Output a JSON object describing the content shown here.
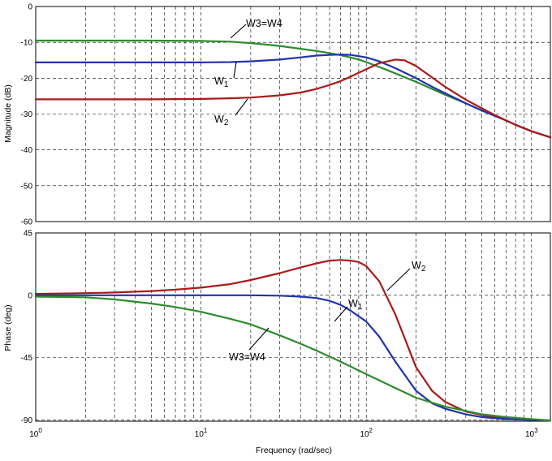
{
  "chart_data": [
    {
      "type": "line",
      "name": "magnitude",
      "xscale": "log",
      "xlim": [
        1,
        1300
      ],
      "ylim": [
        -60,
        0
      ],
      "yticks": [
        -60,
        -50,
        -40,
        -30,
        -20,
        -10,
        0
      ],
      "ytick_labels": [
        "-60",
        "-50",
        "-40",
        "-30",
        "-20",
        "-10",
        "0"
      ],
      "ylabel": "Magnitude (dB)",
      "grid": true,
      "series": [
        {
          "name": "W3=W4",
          "color": "#2e8b2e",
          "x": [
            1,
            5,
            10,
            15,
            20,
            30,
            40,
            50,
            60,
            70,
            80,
            90,
            100,
            130,
            160,
            200,
            250,
            300,
            400,
            500,
            600,
            700,
            800,
            1000,
            1300
          ],
          "y": [
            -9.5,
            -9.5,
            -9.6,
            -9.8,
            -10.2,
            -11.0,
            -11.8,
            -12.4,
            -13.0,
            -13.6,
            -14.2,
            -14.8,
            -15.5,
            -17.5,
            -19.2,
            -21.0,
            -23.0,
            -24.6,
            -27.0,
            -29.0,
            -30.5,
            -31.8,
            -33.0,
            -34.8,
            -36.5
          ]
        },
        {
          "name": "W1",
          "color": "#2233aa",
          "x": [
            1,
            5,
            10,
            15,
            20,
            30,
            40,
            50,
            60,
            70,
            80,
            100,
            120,
            150,
            200,
            250,
            300,
            400,
            500,
            600,
            700,
            800,
            1000,
            1300
          ],
          "y": [
            -15.6,
            -15.6,
            -15.6,
            -15.5,
            -15.3,
            -14.8,
            -14.2,
            -13.7,
            -13.5,
            -13.4,
            -13.5,
            -14.2,
            -15.3,
            -17.2,
            -20.0,
            -22.4,
            -24.2,
            -27.0,
            -29.0,
            -30.5,
            -31.8,
            -33.0,
            -34.8,
            -36.5
          ]
        },
        {
          "name": "W2",
          "color": "#aa1a1a",
          "x": [
            1,
            5,
            10,
            15,
            20,
            30,
            40,
            50,
            60,
            70,
            80,
            100,
            120,
            150,
            170,
            200,
            250,
            300,
            400,
            500,
            600,
            700,
            800,
            1000,
            1300
          ],
          "y": [
            -25.9,
            -25.9,
            -25.8,
            -25.6,
            -25.4,
            -24.8,
            -24.0,
            -23.0,
            -21.9,
            -20.8,
            -19.6,
            -17.5,
            -15.8,
            -14.8,
            -15.0,
            -16.6,
            -19.8,
            -22.4,
            -26.0,
            -28.4,
            -30.3,
            -31.8,
            -33.0,
            -34.8,
            -36.5
          ]
        }
      ]
    },
    {
      "type": "line",
      "name": "phase",
      "xscale": "log",
      "xlim": [
        1,
        1300
      ],
      "ylim": [
        -91,
        45
      ],
      "yticks": [
        -90,
        -45,
        0,
        45
      ],
      "ytick_labels": [
        "-90",
        "-45",
        "0",
        "45"
      ],
      "ylabel": "Phase (deg)",
      "xlabel": "Frequency  (rad/sec)",
      "xticks": [
        1,
        10,
        100,
        1000
      ],
      "xtick_bases": [
        "10",
        "10",
        "10",
        "10"
      ],
      "xtick_exps": [
        "0",
        "1",
        "2",
        "3"
      ],
      "grid": true,
      "series": [
        {
          "name": "W2",
          "color": "#aa1a1a",
          "x": [
            1,
            2,
            3,
            5,
            7,
            10,
            15,
            20,
            30,
            40,
            50,
            60,
            70,
            80,
            90,
            100,
            120,
            150,
            200,
            250,
            300,
            400,
            500,
            600,
            800,
            1000,
            1300
          ],
          "y": [
            1,
            1.5,
            2,
            3,
            4,
            5.5,
            8,
            11,
            16,
            20,
            23,
            25,
            25.5,
            25,
            24,
            21,
            10,
            -14,
            -52,
            -69,
            -77,
            -84,
            -86.5,
            -88,
            -89.5,
            -90,
            -90.5
          ]
        },
        {
          "name": "W1",
          "color": "#2233aa",
          "x": [
            1,
            5,
            10,
            20,
            30,
            40,
            50,
            60,
            70,
            80,
            100,
            120,
            150,
            200,
            250,
            300,
            400,
            500,
            700,
            1000,
            1300
          ],
          "y": [
            0,
            0,
            0,
            0,
            -0.3,
            -1,
            -2,
            -4,
            -7,
            -11,
            -19,
            -30,
            -48,
            -69,
            -78,
            -82,
            -86,
            -88,
            -89.5,
            -90,
            -90.5
          ]
        },
        {
          "name": "W3=W4",
          "color": "#2e8b2e",
          "x": [
            1,
            2,
            3,
            5,
            7,
            10,
            15,
            20,
            30,
            40,
            50,
            70,
            100,
            150,
            200,
            300,
            400,
            500,
            700,
            1000,
            1300
          ],
          "y": [
            -1,
            -1.5,
            -3,
            -6,
            -8.5,
            -12,
            -17,
            -21,
            -29,
            -35,
            -40,
            -48,
            -57,
            -67,
            -74,
            -80.5,
            -83.5,
            -86,
            -88,
            -89.5,
            -90.5
          ]
        }
      ]
    }
  ],
  "annotations": {
    "mag_w34": {
      "base": "W3=W4"
    },
    "mag_w1": {
      "base": "W",
      "sub": "1"
    },
    "mag_w2": {
      "base": "W",
      "sub": "2"
    },
    "ph_w2": {
      "base": "W",
      "sub": "2"
    },
    "ph_w1": {
      "base": "W",
      "sub": "1"
    },
    "ph_w34": {
      "base": "W3=W4"
    }
  }
}
